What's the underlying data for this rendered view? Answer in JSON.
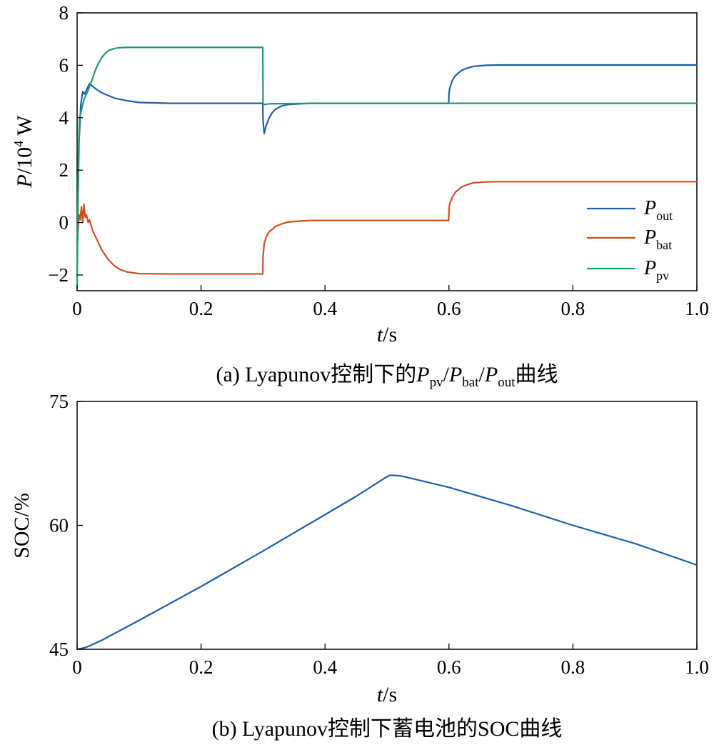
{
  "chart_data": [
    {
      "type": "line",
      "panel": "a",
      "caption": {
        "prefix": "(a) Lyapunov控制下的",
        "sym1": "P",
        "sub1": "pv",
        "sym2": "P",
        "sub2": "bat",
        "sym3": "P",
        "sub3": "out",
        "suffix": "曲线"
      },
      "xlabel": {
        "sym": "t",
        "unit": "s"
      },
      "ylabel": {
        "sym": "P",
        "base": "10",
        "exp": "4",
        "unit": "W"
      },
      "xlim": [
        0,
        1.0
      ],
      "ylim": [
        -2.6,
        8
      ],
      "xticks": [
        "0",
        "0.2",
        "0.4",
        "0.6",
        "0.8",
        "1.0"
      ],
      "xtick_values": [
        0,
        0.2,
        0.4,
        0.6,
        0.8,
        1.0
      ],
      "yticks": [
        "−2",
        "0",
        "2",
        "4",
        "6",
        "8"
      ],
      "ytick_values": [
        -2,
        0,
        2,
        4,
        6,
        8
      ],
      "grid": false,
      "legend_position": "bottom-right",
      "series": [
        {
          "name": "P",
          "sub": "out",
          "color": "#1f5fad",
          "x": [
            0,
            0.003,
            0.006,
            0.009,
            0.012,
            0.016,
            0.02,
            0.025,
            0.03,
            0.04,
            0.05,
            0.06,
            0.08,
            0.1,
            0.15,
            0.2,
            0.25,
            0.2995,
            0.3,
            0.302,
            0.305,
            0.31,
            0.315,
            0.32,
            0.33,
            0.34,
            0.36,
            0.38,
            0.4,
            0.5,
            0.5995,
            0.6,
            0.601,
            0.605,
            0.61,
            0.62,
            0.63,
            0.64,
            0.66,
            0.68,
            0.7,
            0.8,
            0.9,
            1.0
          ],
          "y": [
            -1.2,
            3.0,
            4.5,
            5.0,
            4.9,
            5.1,
            5.3,
            5.2,
            5.1,
            4.95,
            4.85,
            4.75,
            4.65,
            4.58,
            4.55,
            4.55,
            4.55,
            4.55,
            3.9,
            3.4,
            3.7,
            4.0,
            4.2,
            4.32,
            4.45,
            4.5,
            4.53,
            4.55,
            4.55,
            4.55,
            4.55,
            4.9,
            5.1,
            5.4,
            5.6,
            5.8,
            5.9,
            5.96,
            6.0,
            6.01,
            6.01,
            6.01,
            6.01,
            6.01
          ]
        },
        {
          "name": "P",
          "sub": "bat",
          "color": "#d0501f",
          "x": [
            0,
            0.003,
            0.005,
            0.007,
            0.009,
            0.011,
            0.013,
            0.015,
            0.018,
            0.02,
            0.025,
            0.03,
            0.035,
            0.04,
            0.05,
            0.06,
            0.07,
            0.08,
            0.1,
            0.15,
            0.2,
            0.25,
            0.2995,
            0.3,
            0.302,
            0.305,
            0.31,
            0.315,
            0.32,
            0.33,
            0.34,
            0.36,
            0.38,
            0.4,
            0.5,
            0.5995,
            0.6,
            0.601,
            0.605,
            0.61,
            0.62,
            0.63,
            0.64,
            0.66,
            0.68,
            0.7,
            0.8,
            0.9,
            1.0
          ],
          "y": [
            -1.0,
            0.3,
            0.1,
            0.6,
            0.0,
            0.7,
            0.2,
            0.3,
            0.0,
            0.1,
            -0.3,
            -0.55,
            -0.8,
            -1.05,
            -1.4,
            -1.65,
            -1.8,
            -1.88,
            -1.95,
            -1.96,
            -1.96,
            -1.96,
            -1.96,
            -1.3,
            -0.8,
            -0.55,
            -0.35,
            -0.25,
            -0.15,
            -0.05,
            0.02,
            0.06,
            0.08,
            0.08,
            0.08,
            0.08,
            0.5,
            0.7,
            0.95,
            1.15,
            1.35,
            1.45,
            1.52,
            1.55,
            1.56,
            1.56,
            1.56,
            1.56,
            1.56
          ]
        },
        {
          "name": "P",
          "sub": "pv",
          "color": "#1e9b6b",
          "x": [
            0,
            0.002,
            0.004,
            0.006,
            0.008,
            0.01,
            0.012,
            0.015,
            0.018,
            0.02,
            0.025,
            0.03,
            0.035,
            0.04,
            0.045,
            0.05,
            0.055,
            0.06,
            0.065,
            0.07,
            0.08,
            0.1,
            0.15,
            0.2,
            0.25,
            0.2995,
            0.3,
            0.302,
            0.31,
            0.4,
            0.5,
            0.6,
            0.7,
            0.8,
            0.9,
            1.0
          ],
          "y": [
            -2.5,
            2.5,
            4.0,
            4.2,
            4.4,
            4.6,
            4.75,
            4.9,
            5.05,
            5.2,
            5.5,
            5.85,
            6.1,
            6.3,
            6.45,
            6.55,
            6.6,
            6.64,
            6.66,
            6.67,
            6.68,
            6.68,
            6.68,
            6.68,
            6.68,
            6.68,
            4.55,
            4.5,
            4.53,
            4.55,
            4.55,
            4.55,
            4.55,
            4.55,
            4.55,
            4.55
          ]
        }
      ]
    },
    {
      "type": "line",
      "panel": "b",
      "caption": {
        "text": "(b) Lyapunov控制下蓄电池的SOC曲线"
      },
      "xlabel": {
        "sym": "t",
        "unit": "s"
      },
      "ylabel": {
        "text": "SOC/%"
      },
      "xlim": [
        0,
        1.0
      ],
      "ylim": [
        45,
        75
      ],
      "xticks": [
        "0",
        "0.2",
        "0.4",
        "0.6",
        "0.8",
        "1.0"
      ],
      "xtick_values": [
        0,
        0.2,
        0.4,
        0.6,
        0.8,
        1.0
      ],
      "yticks": [
        "45",
        "60",
        "75"
      ],
      "ytick_values": [
        45,
        60,
        75
      ],
      "grid": false,
      "series": [
        {
          "color": "#1f5fad",
          "x": [
            0,
            0.01,
            0.02,
            0.03,
            0.04,
            0.05,
            0.1,
            0.2,
            0.3,
            0.4,
            0.45,
            0.5,
            0.505,
            0.51,
            0.52,
            0.53,
            0.55,
            0.6,
            0.7,
            0.8,
            0.9,
            1.0
          ],
          "y": [
            45.0,
            45.15,
            45.4,
            45.75,
            46.1,
            46.5,
            48.5,
            52.6,
            56.9,
            61.3,
            63.5,
            65.9,
            66.05,
            66.05,
            66.0,
            65.85,
            65.5,
            64.6,
            62.4,
            60.0,
            57.8,
            55.2
          ]
        }
      ]
    }
  ]
}
